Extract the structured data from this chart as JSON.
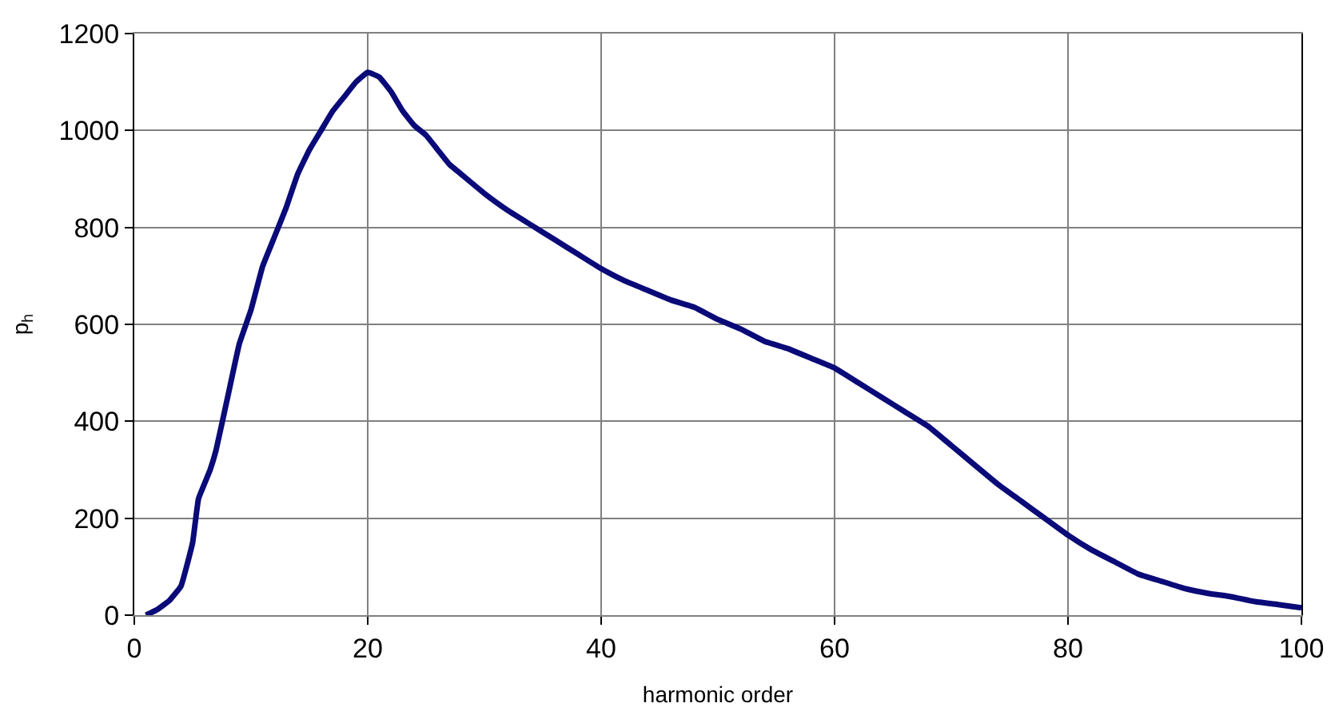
{
  "chart_data": {
    "type": "line",
    "xlabel": "harmonic order",
    "ylabel": "p$_{h}$",
    "series": [
      {
        "color": "#0a0a78",
        "x": [
          1,
          2,
          3,
          4,
          5,
          5.5,
          6.5,
          7,
          8,
          9,
          10,
          11,
          12,
          13,
          14,
          15,
          16,
          17,
          18,
          19,
          20,
          21,
          22,
          23,
          24,
          25,
          26,
          27,
          28,
          30,
          32,
          34,
          36,
          38,
          40,
          42,
          44,
          46,
          48,
          50,
          52,
          54,
          56,
          58,
          60,
          62,
          64,
          66,
          68,
          70,
          72,
          74,
          76,
          78,
          80,
          82,
          84,
          86,
          88,
          90,
          92,
          94,
          96,
          98,
          100
        ],
        "values": [
          0,
          12,
          30,
          60,
          150,
          240,
          300,
          340,
          450,
          560,
          630,
          720,
          780,
          840,
          910,
          960,
          1000,
          1040,
          1070,
          1100,
          1120,
          1110,
          1080,
          1040,
          1010,
          990,
          960,
          930,
          910,
          870,
          835,
          805,
          775,
          745,
          715,
          690,
          670,
          650,
          635,
          610,
          590,
          565,
          550,
          530,
          510,
          480,
          450,
          420,
          390,
          350,
          310,
          270,
          235,
          200,
          165,
          135,
          110,
          85,
          70,
          55,
          45,
          38,
          28,
          22,
          15
        ]
      }
    ],
    "xlim": [
      0,
      100
    ],
    "xticks": [
      0,
      20,
      40,
      60,
      80,
      100
    ],
    "ylim": [
      0,
      1200
    ],
    "yticks": [
      0,
      200,
      400,
      600,
      800,
      1000,
      1200
    ],
    "grid": true,
    "legend": false,
    "marker": "none",
    "line_style": "solid"
  }
}
